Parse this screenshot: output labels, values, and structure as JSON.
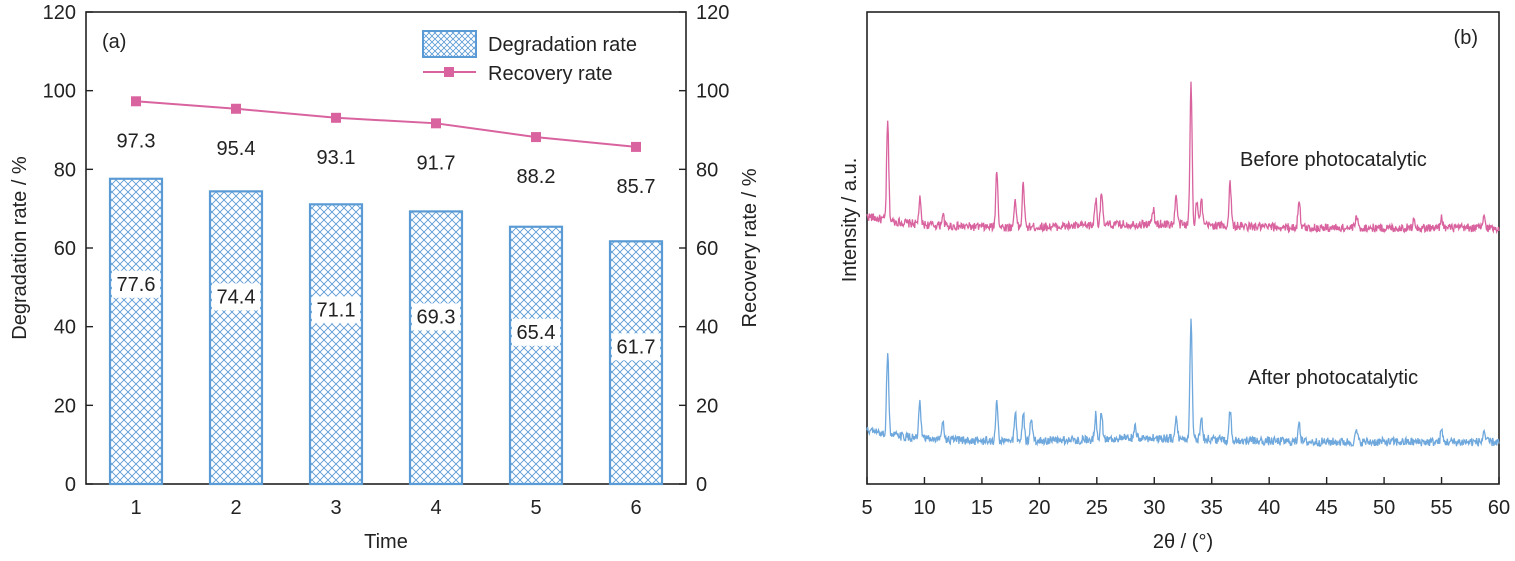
{
  "chart_data": [
    {
      "type": "bar",
      "panel_label": "(a)",
      "categories": [
        "1",
        "2",
        "3",
        "4",
        "5",
        "6"
      ],
      "series": [
        {
          "name": "Degradation rate",
          "type": "bar",
          "axis": "left",
          "values": [
            77.6,
            74.4,
            71.1,
            69.3,
            65.4,
            61.7
          ],
          "color": "#5b9bd5"
        },
        {
          "name": "Recovery rate",
          "type": "line",
          "axis": "right",
          "values": [
            97.3,
            95.4,
            93.1,
            91.7,
            88.2,
            85.7
          ],
          "color": "#d9639f"
        }
      ],
      "xlabel": "Time",
      "ylabel": "Degradation rate / %",
      "y2label": "Recovery rate / %",
      "ylim": [
        0,
        120
      ],
      "y2lim": [
        0,
        120
      ],
      "yticks": [
        "0",
        "20",
        "40",
        "60",
        "80",
        "100",
        "120"
      ],
      "y2ticks": [
        "0",
        "20",
        "40",
        "60",
        "80",
        "100",
        "120"
      ],
      "bar_value_labels": [
        "77.6",
        "74.4",
        "71.1",
        "69.3",
        "65.4",
        "61.7"
      ],
      "line_value_labels": [
        "97.3",
        "95.4",
        "93.1",
        "91.7",
        "88.2",
        "85.7"
      ],
      "legend": "top-right",
      "grid": false
    },
    {
      "type": "line",
      "panel_label": "(b)",
      "xlabel": "2θ / (°)",
      "ylabel": "Intensity / a.u.",
      "xlim": [
        5,
        60
      ],
      "xticks": [
        "5",
        "10",
        "15",
        "20",
        "25",
        "30",
        "35",
        "40",
        "45",
        "50",
        "55",
        "60"
      ],
      "series": [
        {
          "name": "Before photocatalytic",
          "color": "#d9639f",
          "peaks": [
            [
              6.8,
              1.0
            ],
            [
              9.6,
              0.25
            ],
            [
              11.6,
              0.12
            ],
            [
              16.3,
              0.6
            ],
            [
              17.9,
              0.3
            ],
            [
              18.6,
              0.45
            ],
            [
              24.9,
              0.28
            ],
            [
              25.4,
              0.35
            ],
            [
              29.9,
              0.15
            ],
            [
              31.9,
              0.3
            ],
            [
              33.2,
              1.45
            ],
            [
              33.7,
              0.25
            ],
            [
              34.1,
              0.25
            ],
            [
              36.6,
              0.45
            ],
            [
              42.6,
              0.3
            ],
            [
              47.6,
              0.12
            ],
            [
              52.6,
              0.12
            ],
            [
              55.0,
              0.12
            ],
            [
              58.7,
              0.12
            ]
          ]
        },
        {
          "name": "After photocatalytic",
          "color": "#6fa8dc",
          "peaks": [
            [
              6.8,
              0.85
            ],
            [
              9.6,
              0.35
            ],
            [
              11.6,
              0.22
            ],
            [
              16.3,
              0.42
            ],
            [
              17.9,
              0.3
            ],
            [
              18.6,
              0.3
            ],
            [
              19.3,
              0.25
            ],
            [
              24.9,
              0.25
            ],
            [
              25.4,
              0.3
            ],
            [
              28.3,
              0.12
            ],
            [
              31.9,
              0.22
            ],
            [
              33.2,
              1.25
            ],
            [
              34.1,
              0.25
            ],
            [
              36.6,
              0.3
            ],
            [
              42.6,
              0.22
            ],
            [
              47.6,
              0.12
            ],
            [
              55.0,
              0.12
            ],
            [
              58.7,
              0.12
            ]
          ]
        }
      ],
      "grid": false
    }
  ]
}
